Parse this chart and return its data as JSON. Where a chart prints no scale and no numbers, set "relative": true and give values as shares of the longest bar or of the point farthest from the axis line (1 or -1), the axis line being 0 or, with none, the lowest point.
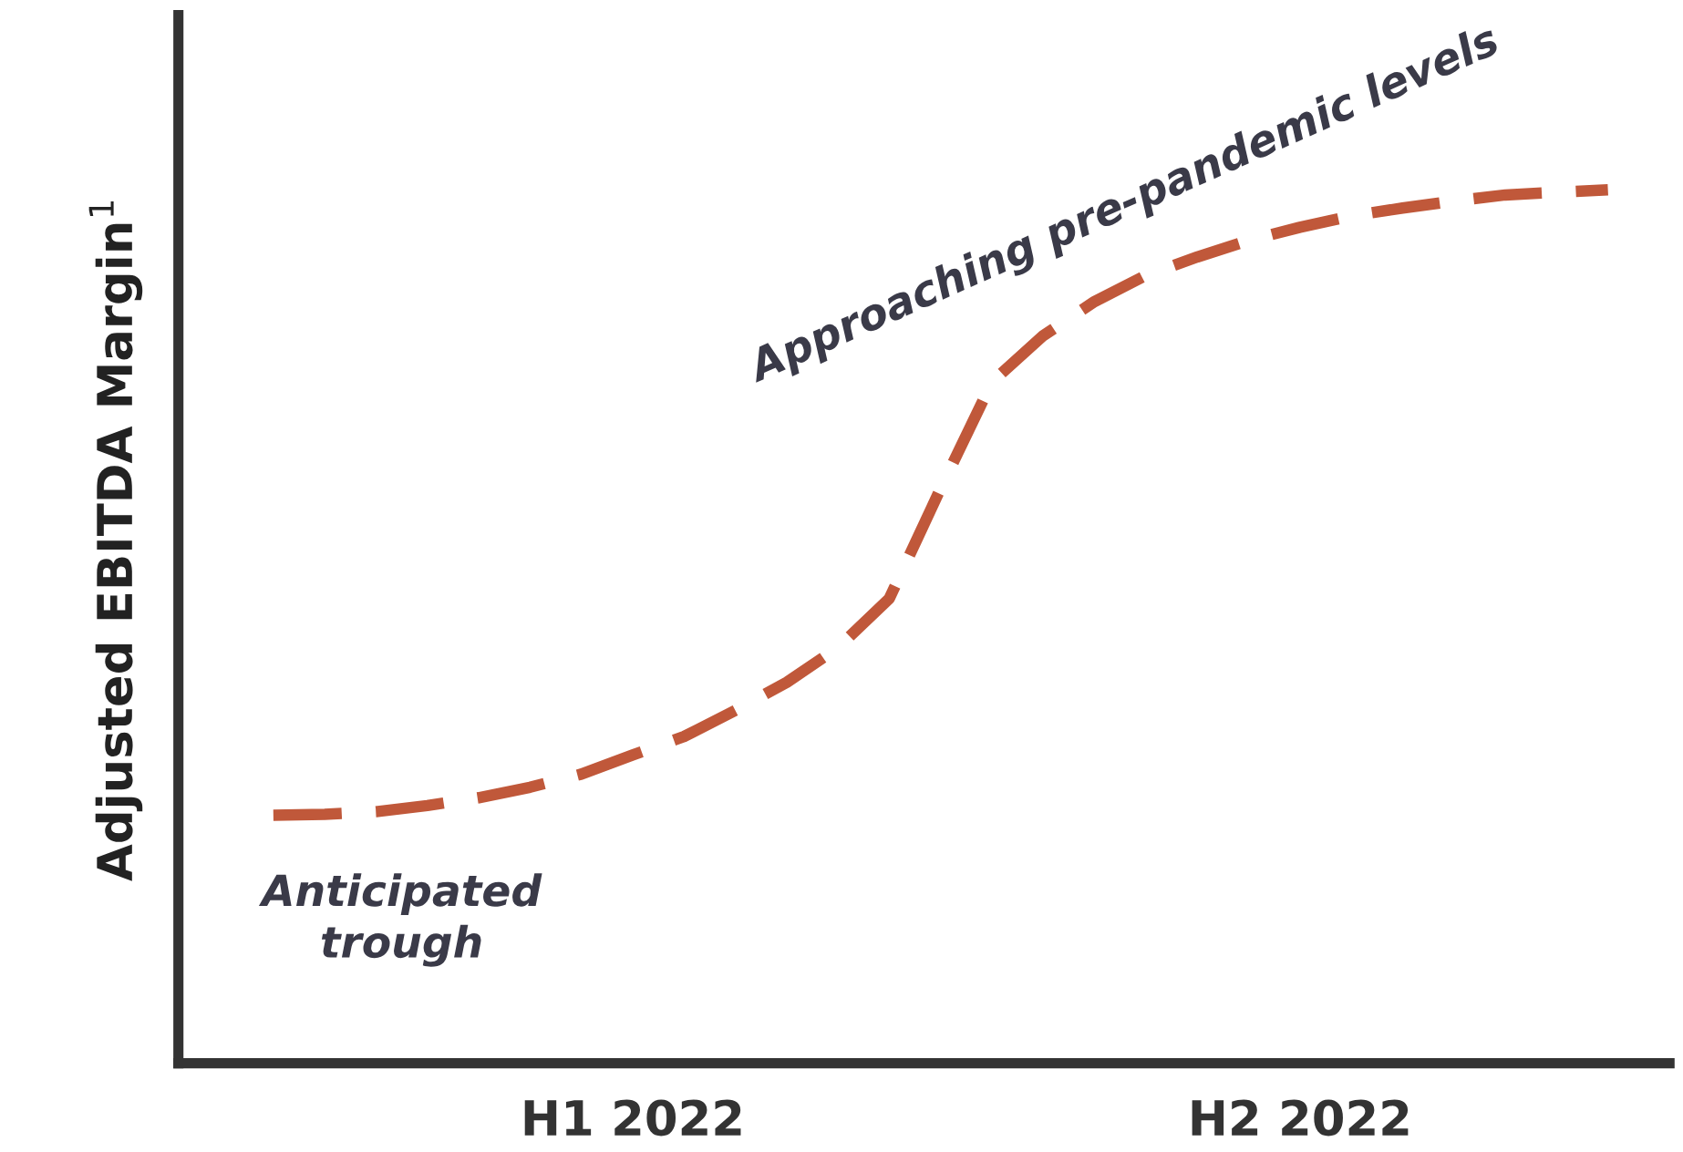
{
  "chart_data": {
    "type": "line",
    "relative": true,
    "ylabel": "Adjusted EBITDA Margin$^{1}$",
    "categories": [
      null,
      null,
      null,
      null,
      null,
      null,
      null,
      "H1 2022",
      null,
      null,
      null,
      null,
      null,
      null,
      null,
      null,
      null,
      null,
      null,
      null,
      "H2 2022",
      null,
      null,
      null,
      null,
      null,
      null
    ],
    "tick_labels": "x",
    "grid": false,
    "legend": false,
    "marker": "none",
    "line_style": "dashed",
    "series": [
      {
        "color": "#c0583a",
        "values": [
          0.284,
          0.285,
          0.288,
          0.295,
          0.304,
          0.316,
          0.331,
          0.353,
          0.374,
          0.404,
          0.436,
          0.476,
          0.532,
          0.658,
          0.78,
          0.833,
          0.872,
          0.902,
          0.923,
          0.942,
          0.957,
          0.97,
          0.979,
          0.987,
          0.994,
          0.997,
          1.0
        ]
      }
    ],
    "annotations": [
      {
        "text": "Anticipated\ntrough",
        "y": 0.284
      },
      {
        "text": "Approaching pre-pandemic levels",
        "y": 0.902
      }
    ]
  }
}
